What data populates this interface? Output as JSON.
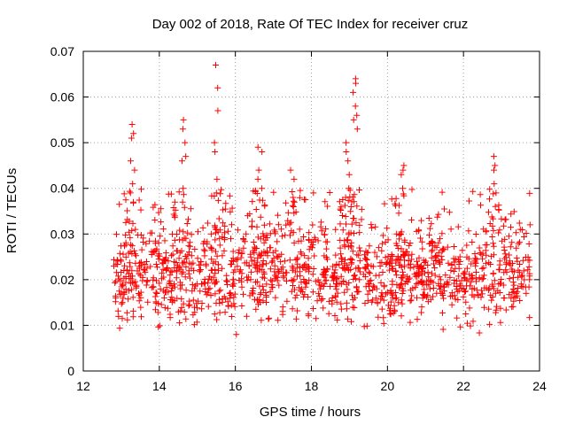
{
  "chart_data": {
    "type": "scatter",
    "title": "Day 002 of 2018, Rate Of TEC Index for receiver cruz",
    "xlabel": "GPS time / hours",
    "ylabel": "ROTI / TECUs",
    "xlim": [
      12,
      24
    ],
    "ylim": [
      0,
      0.07
    ],
    "xticks": [
      12,
      14,
      16,
      18,
      20,
      22,
      24
    ],
    "ytick_labels": [
      "0",
      "0.01",
      "0.02",
      "0.03",
      "0.04",
      "0.05",
      "0.06",
      "0.07"
    ],
    "yticks": [
      0,
      0.01,
      0.02,
      0.03,
      0.04,
      0.05,
      0.06,
      0.07
    ],
    "grid": true,
    "marker": "+",
    "color": "#ff0000",
    "series": [
      {
        "name": "ROTI",
        "x_range": [
          12.8,
          23.75
        ],
        "background_band": [
          0.008,
          0.03
        ],
        "peaks": [
          {
            "x": 13.3,
            "values": [
              0.054,
              0.052,
              0.051,
              0.046,
              0.044,
              0.041,
              0.039,
              0.037
            ]
          },
          {
            "x": 14.65,
            "values": [
              0.055,
              0.053,
              0.05,
              0.047,
              0.046,
              0.04,
              0.037
            ]
          },
          {
            "x": 15.5,
            "values": [
              0.067,
              0.062,
              0.057,
              0.05,
              0.048,
              0.042,
              0.039
            ]
          },
          {
            "x": 16.65,
            "values": [
              0.049,
              0.048,
              0.044,
              0.042,
              0.04
            ]
          },
          {
            "x": 17.5,
            "values": [
              0.044,
              0.042,
              0.038,
              0.037
            ]
          },
          {
            "x": 18.95,
            "values": [
              0.05,
              0.048,
              0.046,
              0.043,
              0.04,
              0.038
            ]
          },
          {
            "x": 19.15,
            "values": [
              0.064,
              0.063,
              0.061,
              0.058,
              0.056,
              0.055,
              0.053
            ]
          },
          {
            "x": 20.4,
            "values": [
              0.045,
              0.044,
              0.043,
              0.04
            ]
          },
          {
            "x": 22.85,
            "values": [
              0.047,
              0.045,
              0.044,
              0.041,
              0.039
            ]
          }
        ]
      }
    ]
  }
}
